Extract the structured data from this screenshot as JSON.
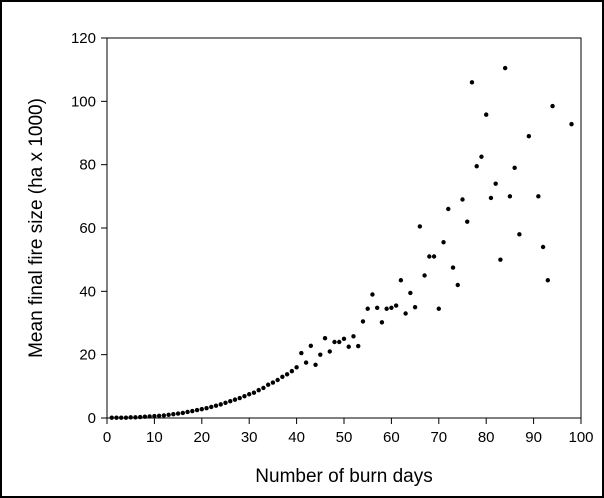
{
  "chart_data": {
    "type": "scatter",
    "title": "",
    "xlabel": "Number of burn days",
    "ylabel": "Mean final fire size (ha x 1000)",
    "xlim": [
      0,
      100
    ],
    "ylim": [
      0,
      120
    ],
    "x_ticks": [
      "0",
      "10",
      "20",
      "30",
      "40",
      "50",
      "60",
      "70",
      "80",
      "90",
      "100"
    ],
    "y_ticks": [
      "0",
      "20",
      "40",
      "60",
      "80",
      "100",
      "120"
    ],
    "grid": false,
    "legend": "none",
    "colors": {
      "marker": "#000000",
      "axis": "#000000",
      "background": "#ffffff"
    },
    "series": [
      {
        "points": [
          [
            1,
            0.1
          ],
          [
            2,
            0.1
          ],
          [
            3,
            0.1
          ],
          [
            4,
            0.1
          ],
          [
            5,
            0.2
          ],
          [
            6,
            0.2
          ],
          [
            7,
            0.3
          ],
          [
            8,
            0.4
          ],
          [
            9,
            0.5
          ],
          [
            10,
            0.6
          ],
          [
            11,
            0.7
          ],
          [
            12,
            0.8
          ],
          [
            13,
            1.0
          ],
          [
            14,
            1.2
          ],
          [
            15,
            1.4
          ],
          [
            16,
            1.6
          ],
          [
            17,
            1.9
          ],
          [
            18,
            2.2
          ],
          [
            19,
            2.5
          ],
          [
            20,
            2.8
          ],
          [
            21,
            3.1
          ],
          [
            22,
            3.5
          ],
          [
            23,
            3.9
          ],
          [
            24,
            4.3
          ],
          [
            25,
            4.8
          ],
          [
            26,
            5.3
          ],
          [
            27,
            5.8
          ],
          [
            28,
            6.3
          ],
          [
            29,
            6.9
          ],
          [
            30,
            7.5
          ],
          [
            31,
            8.0
          ],
          [
            32,
            8.8
          ],
          [
            33,
            9.5
          ],
          [
            34,
            10.5
          ],
          [
            35,
            11.2
          ],
          [
            36,
            12.0
          ],
          [
            37,
            13.0
          ],
          [
            38,
            13.8
          ],
          [
            39,
            14.8
          ],
          [
            40,
            16.0
          ],
          [
            41,
            20.5
          ],
          [
            42,
            17.5
          ],
          [
            43,
            22.8
          ],
          [
            44,
            16.8
          ],
          [
            45,
            20.0
          ],
          [
            46,
            25.2
          ],
          [
            47,
            21.0
          ],
          [
            48,
            24.0
          ],
          [
            49,
            24.0
          ],
          [
            50,
            25.0
          ],
          [
            51,
            22.5
          ],
          [
            52,
            25.8
          ],
          [
            53,
            22.7
          ],
          [
            54,
            30.5
          ],
          [
            55,
            34.5
          ],
          [
            56,
            39.0
          ],
          [
            57,
            34.8
          ],
          [
            58,
            30.2
          ],
          [
            59,
            34.5
          ],
          [
            60,
            34.8
          ],
          [
            61,
            35.5
          ],
          [
            62,
            43.5
          ],
          [
            63,
            33.0
          ],
          [
            64,
            39.5
          ],
          [
            65,
            35.0
          ],
          [
            66,
            60.5
          ],
          [
            67,
            45.0
          ],
          [
            68,
            51.0
          ],
          [
            69,
            51.0
          ],
          [
            70,
            34.5
          ],
          [
            71,
            55.5
          ],
          [
            72,
            66.0
          ],
          [
            73,
            47.5
          ],
          [
            74,
            42.0
          ],
          [
            75,
            69.0
          ],
          [
            76,
            62.0
          ],
          [
            77,
            106.0
          ],
          [
            78,
            79.5
          ],
          [
            79,
            82.5
          ],
          [
            80,
            95.8
          ],
          [
            81,
            69.5
          ],
          [
            82,
            74.0
          ],
          [
            83,
            50.0
          ],
          [
            84,
            110.5
          ],
          [
            85,
            70.0
          ],
          [
            86,
            79.0
          ],
          [
            87,
            58.0
          ],
          [
            89,
            89.0
          ],
          [
            91,
            70.0
          ],
          [
            92,
            54.0
          ],
          [
            93,
            43.5
          ],
          [
            94,
            98.5
          ],
          [
            98,
            92.8
          ]
        ]
      }
    ]
  }
}
